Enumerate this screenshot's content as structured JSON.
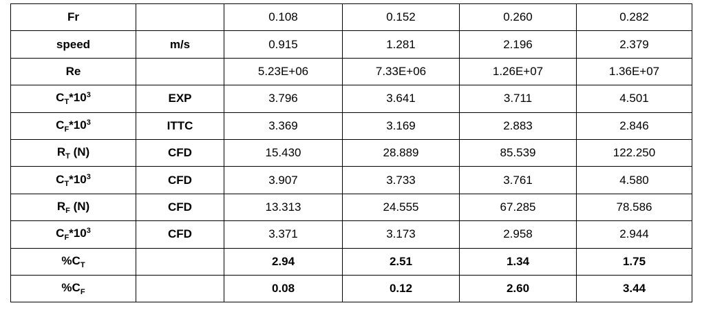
{
  "table": {
    "rows": [
      {
        "label": [
          {
            "text": "Fr"
          }
        ],
        "unit": null,
        "values": [
          "0.108",
          "0.152",
          "0.260",
          "0.282"
        ]
      },
      {
        "label": [
          {
            "text": "speed"
          }
        ],
        "unit": "m/s",
        "values": [
          "0.915",
          "1.281",
          "2.196",
          "2.379"
        ]
      },
      {
        "label": [
          {
            "text": "Re"
          }
        ],
        "unit": null,
        "values": [
          "5.23E+06",
          "7.33E+06",
          "1.26E+07",
          "1.36E+07"
        ]
      },
      {
        "label": [
          {
            "text": "C"
          },
          {
            "text": "T",
            "pos": "sub"
          },
          {
            "text": "*10"
          },
          {
            "text": "3",
            "pos": "sup"
          }
        ],
        "unit": "EXP",
        "values": [
          "3.796",
          "3.641",
          "3.711",
          "4.501"
        ]
      },
      {
        "label": [
          {
            "text": "C"
          },
          {
            "text": "F",
            "pos": "sub"
          },
          {
            "text": "*10"
          },
          {
            "text": "3",
            "pos": "sup"
          }
        ],
        "unit": "ITTC",
        "values": [
          "3.369",
          "3.169",
          "2.883",
          "2.846"
        ]
      },
      {
        "label": [
          {
            "text": "R"
          },
          {
            "text": "T",
            "pos": "sub"
          },
          {
            "text": " (N)"
          }
        ],
        "unit": "CFD",
        "values": [
          "15.430",
          "28.889",
          "85.539",
          "122.250"
        ]
      },
      {
        "label": [
          {
            "text": "C"
          },
          {
            "text": "T",
            "pos": "sub"
          },
          {
            "text": "*10"
          },
          {
            "text": "3",
            "pos": "sup"
          }
        ],
        "unit": "CFD",
        "values": [
          "3.907",
          "3.733",
          "3.761",
          "4.580"
        ]
      },
      {
        "label": [
          {
            "text": "R"
          },
          {
            "text": "F",
            "pos": "sub"
          },
          {
            "text": " (N)"
          }
        ],
        "unit": "CFD",
        "values": [
          "13.313",
          "24.555",
          "67.285",
          "78.586"
        ]
      },
      {
        "label": [
          {
            "text": "C"
          },
          {
            "text": "F",
            "pos": "sub"
          },
          {
            "text": "*10"
          },
          {
            "text": "3",
            "pos": "sup"
          }
        ],
        "unit": "CFD",
        "values": [
          "3.371",
          "3.173",
          "2.958",
          "2.944"
        ]
      },
      {
        "label": [
          {
            "text": "%C"
          },
          {
            "text": "T",
            "pos": "sub"
          }
        ],
        "unit": null,
        "values": [
          "2.94",
          "2.51",
          "1.34",
          "1.75"
        ],
        "bold": true
      },
      {
        "label": [
          {
            "text": "%C"
          },
          {
            "text": "F",
            "pos": "sub"
          }
        ],
        "unit": null,
        "values": [
          "0.08",
          "0.12",
          "2.60",
          "3.44"
        ],
        "bold": true
      }
    ]
  }
}
